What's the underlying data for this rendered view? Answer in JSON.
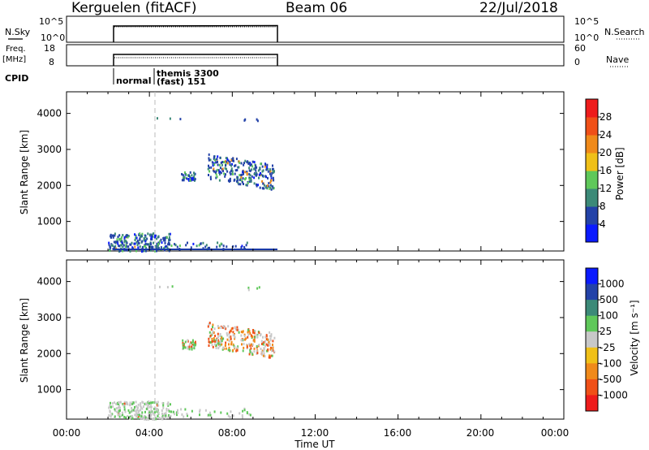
{
  "header": {
    "station": "Kerguelen (fitACF)",
    "beam": "Beam 06",
    "date": "22/Jul/2018"
  },
  "noise_panel": {
    "left_label": "N.Sky",
    "right_label": "N.Search",
    "ticks_left": [
      "10^5",
      "10^0"
    ],
    "ticks_right": [
      "10^5",
      "10^0"
    ]
  },
  "freq_panel": {
    "left_label_line1": "Freq.",
    "left_label_line2": "[MHz]",
    "right_label": "Nave",
    "ticks_left": [
      "18",
      "8"
    ],
    "ticks_right": [
      "60",
      "0"
    ]
  },
  "cpid": {
    "label": "CPID",
    "normal": "normal",
    "themis_line1": "themis 3300",
    "themis_line2": "(fast) 151"
  },
  "axes": {
    "ylabel": "Slant Range [km]",
    "xlabel": "Time UT",
    "yticks": [
      "1000",
      "2000",
      "3000",
      "4000"
    ],
    "xticks": [
      "00:00",
      "04:00",
      "08:00",
      "12:00",
      "16:00",
      "20:00",
      "00:00"
    ]
  },
  "colorbars": {
    "power": {
      "label": "Power [dB]",
      "ticks": [
        "4",
        "8",
        "12",
        "16",
        "20",
        "24",
        "28"
      ],
      "colors": [
        "#0a1aff",
        "#2342a8",
        "#3c8a78",
        "#5fc85a",
        "#f0c018",
        "#f08a1a",
        "#f05018",
        "#ee1c1c"
      ]
    },
    "velocity": {
      "label": "Velocity [m s⁻¹]",
      "ticks": [
        "1000",
        "500",
        "100",
        "25",
        "-25",
        "-100",
        "-500",
        "-1000"
      ],
      "colors": [
        "#0a1aff",
        "#2342a8",
        "#3c8a78",
        "#5fc85a",
        "#c8c8c8",
        "#f0c018",
        "#f08a1a",
        "#f05018",
        "#ee1c1c"
      ]
    }
  },
  "chart_data": [
    {
      "type": "heatmap",
      "name": "Power",
      "xlabel": "Time UT",
      "ylabel": "Slant Range [km]",
      "xlim": [
        0,
        24
      ],
      "ylim": [
        180,
        4600
      ],
      "data_extent_hours": [
        2.0,
        10.0
      ],
      "clusters": [
        {
          "t": [
            2.0,
            5.0
          ],
          "r": [
            200,
            700
          ],
          "n": 230,
          "mix": [
            0.55,
            0.3,
            0.12,
            0.03
          ]
        },
        {
          "t": [
            5.0,
            8.8
          ],
          "r": [
            250,
            450
          ],
          "n": 40,
          "mix": [
            0.6,
            0.3,
            0.1,
            0.0
          ]
        },
        {
          "t": [
            5.5,
            6.2
          ],
          "r": [
            2150,
            2400
          ],
          "n": 40,
          "mix": [
            0.5,
            0.4,
            0.1,
            0.0
          ]
        },
        {
          "t": [
            6.8,
            10.0
          ],
          "r": [
            2050,
            3200
          ],
          "n": 260,
          "mix": [
            0.55,
            0.25,
            0.12,
            0.08
          ]
        },
        {
          "t": [
            8.5,
            9.3
          ],
          "r": [
            3800,
            3900
          ],
          "n": 4,
          "mix": [
            0.8,
            0.2,
            0.0,
            0.0
          ]
        },
        {
          "t": [
            4.3,
            5.5
          ],
          "r": [
            3850,
            3900
          ],
          "n": 3,
          "mix": [
            0.7,
            0.3,
            0.0,
            0.0
          ]
        }
      ]
    },
    {
      "type": "heatmap",
      "name": "Velocity",
      "xlabel": "Time UT",
      "ylabel": "Slant Range [km]",
      "xlim": [
        0,
        24
      ],
      "ylim": [
        180,
        4600
      ],
      "data_extent_hours": [
        2.0,
        10.0
      ],
      "clusters": [
        {
          "t": [
            2.0,
            5.0
          ],
          "r": [
            200,
            700
          ],
          "n": 220,
          "mix": [
            0.7,
            0.28,
            0.02,
            0.0
          ]
        },
        {
          "t": [
            5.0,
            9.0
          ],
          "r": [
            250,
            500
          ],
          "n": 40,
          "mix": [
            0.6,
            0.4,
            0.0,
            0.0
          ]
        },
        {
          "t": [
            5.5,
            6.2
          ],
          "r": [
            2150,
            2400
          ],
          "n": 40,
          "mix": [
            0.2,
            0.6,
            0.2,
            0.0
          ]
        },
        {
          "t": [
            6.8,
            10.0
          ],
          "r": [
            2050,
            3200
          ],
          "n": 260,
          "mix": [
            0.35,
            0.15,
            0.3,
            0.2
          ]
        },
        {
          "t": [
            8.5,
            9.3
          ],
          "r": [
            3800,
            3900
          ],
          "n": 4,
          "mix": [
            0.5,
            0.5,
            0.0,
            0.0
          ]
        },
        {
          "t": [
            4.3,
            5.5
          ],
          "r": [
            3850,
            3900
          ],
          "n": 3,
          "mix": [
            0.5,
            0.5,
            0.0,
            0.0
          ]
        }
      ]
    }
  ]
}
